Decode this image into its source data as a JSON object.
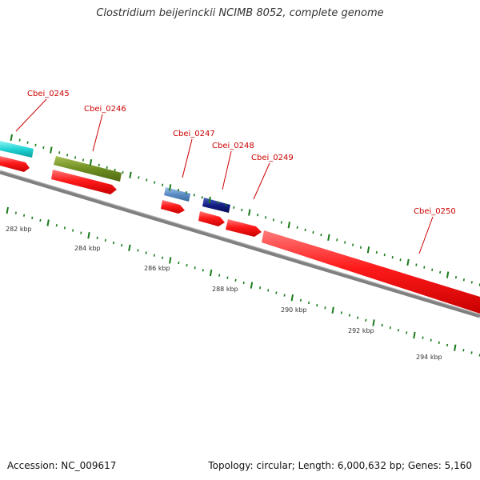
{
  "title": "Clostridium beijerinckii NCIMB 8052, complete genome",
  "footer": {
    "accession": "Accession: NC_009617",
    "topology": "Topology: circular; Length: 6,000,632 bp; Genes: 5,160"
  },
  "colors": {
    "backbone": "#777777",
    "cds": "#ff0000",
    "label": "#cc0000",
    "tick": "#1a7a1a",
    "text": "#333333"
  },
  "gene_labels": [
    "Cbei_0245",
    "Cbei_0246",
    "Cbei_0247",
    "Cbei_0248",
    "Cbei_0249",
    "Cbei_0250"
  ],
  "scale_labels": [
    "282 kbp",
    "284 kbp",
    "286 kbp",
    "288 kbp",
    "290 kbp",
    "292 kbp",
    "294 kbp"
  ]
}
